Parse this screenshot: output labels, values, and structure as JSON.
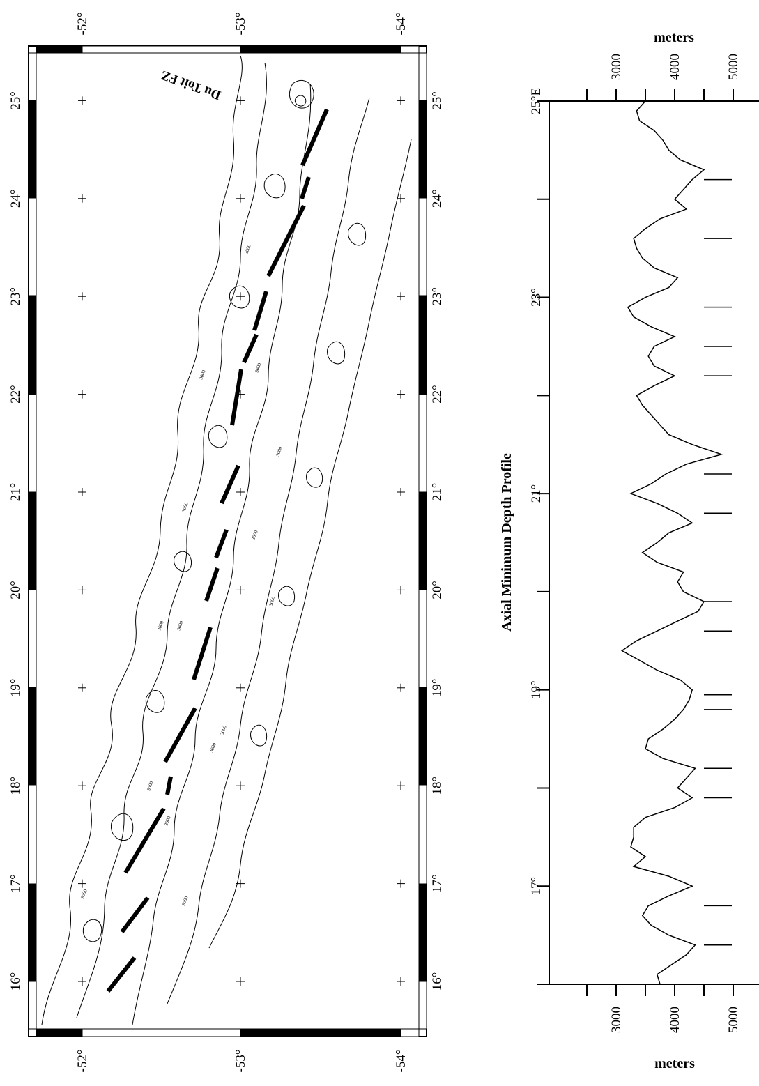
{
  "map": {
    "feature_label": "Du Toit FZ",
    "lon_labels": [
      "16°",
      "17°",
      "18°",
      "19°",
      "20°",
      "21°",
      "22°",
      "23°",
      "24°",
      "25°"
    ],
    "lat_labels": [
      "-52°",
      "-53°",
      "-54°"
    ],
    "contour_labels": [
      "3000",
      "3000",
      "3000",
      "3000",
      "3000",
      "3000",
      "3000",
      "3000",
      "3000",
      "3000",
      "3000",
      "3000",
      "3000",
      "3000",
      "3000"
    ]
  },
  "profile": {
    "title": "Axial Minimum Depth Profile",
    "top_axis_label": "meters",
    "bottom_axis_label": "meters",
    "top_ticks": [
      "3000",
      "4000",
      "5000"
    ],
    "bottom_ticks": [
      "3000",
      "4000",
      "5000"
    ],
    "lon_labels": [
      "25°E",
      "23°",
      "21°",
      "19°",
      "17°"
    ]
  },
  "chart_data": {
    "type": "line",
    "title": "Axial Minimum Depth Profile",
    "xlabel": "",
    "ylabel": "meters",
    "xlim": [
      16,
      25
    ],
    "ylim": [
      2000,
      5500
    ],
    "x": [
      16.0,
      16.1,
      16.2,
      16.3,
      16.4,
      16.5,
      16.6,
      16.7,
      16.8,
      16.9,
      17.0,
      17.1,
      17.2,
      17.3,
      17.4,
      17.5,
      17.6,
      17.7,
      17.8,
      17.9,
      18.0,
      18.1,
      18.2,
      18.3,
      18.4,
      18.5,
      18.6,
      18.7,
      18.8,
      18.9,
      19.0,
      19.1,
      19.2,
      19.3,
      19.4,
      19.5,
      19.6,
      19.7,
      19.8,
      19.9,
      20.0,
      20.1,
      20.2,
      20.3,
      20.4,
      20.5,
      20.6,
      20.7,
      20.8,
      20.9,
      21.0,
      21.1,
      21.2,
      21.3,
      21.4,
      21.5,
      21.6,
      21.7,
      21.8,
      21.9,
      22.0,
      22.1,
      22.2,
      22.3,
      22.4,
      22.5,
      22.6,
      22.7,
      22.8,
      22.9,
      23.0,
      23.1,
      23.2,
      23.3,
      23.4,
      23.5,
      23.6,
      23.7,
      23.8,
      23.9,
      24.0,
      24.1,
      24.2,
      24.3,
      24.4,
      24.5,
      24.6,
      24.7,
      24.8,
      24.9,
      25.0
    ],
    "values": [
      3750,
      3700,
      3950,
      4200,
      4350,
      3900,
      3600,
      3450,
      3550,
      3900,
      4300,
      3900,
      3300,
      3500,
      3250,
      3300,
      3300,
      3500,
      4000,
      4300,
      4050,
      4200,
      4350,
      3800,
      3500,
      3550,
      3800,
      4000,
      4150,
      4250,
      4300,
      4100,
      3700,
      3400,
      3100,
      3350,
      3700,
      4050,
      4400,
      4500,
      4150,
      4050,
      4150,
      3700,
      3450,
      3700,
      3900,
      4300,
      4050,
      3700,
      3250,
      3600,
      3850,
      4200,
      4800,
      4300,
      3900,
      3750,
      3600,
      3450,
      3350,
      3650,
      4000,
      3650,
      3550,
      3650,
      4000,
      3600,
      3300,
      3200,
      3500,
      3900,
      4050,
      3650,
      3450,
      3350,
      3300,
      3500,
      3750,
      4200,
      4000,
      4150,
      4300,
      4500,
      4100,
      3900,
      3800,
      3650,
      3400,
      3350,
      3500
    ],
    "tick_marks_x": [
      16.4,
      16.8,
      17.9,
      18.2,
      18.8,
      18.95,
      19.6,
      19.9,
      20.8,
      21.2,
      22.2,
      22.5,
      22.9,
      23.6,
      24.2
    ]
  }
}
